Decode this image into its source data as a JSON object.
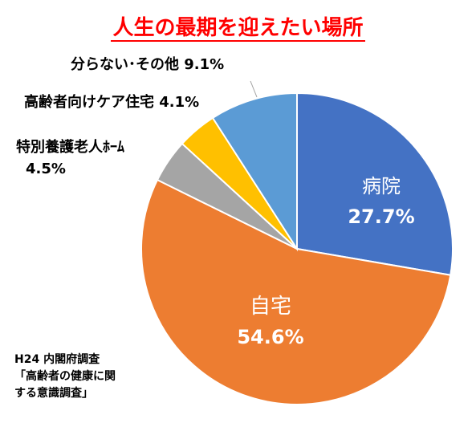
{
  "chart_data": {
    "type": "pie",
    "title": "人生の最期を迎えたい場所",
    "slices": [
      {
        "label": "病院",
        "value": 27.7,
        "value_text": "27.7%",
        "color": "#4472c4"
      },
      {
        "label": "自宅",
        "value": 54.6,
        "value_text": "54.6%",
        "color": "#ed7d31"
      },
      {
        "label": "特別養護老人ホーム",
        "value": 4.5,
        "value_text": "4.5%",
        "color": "#a5a5a5"
      },
      {
        "label": "高齢者向けケア住宅",
        "value": 4.1,
        "value_text": "4.1%",
        "color": "#ffc000"
      },
      {
        "label": "分らない・その他",
        "value": 9.1,
        "value_text": "9.1%",
        "color": "#5b9bd5"
      }
    ]
  },
  "labels": {
    "byoin_name": "病院",
    "byoin_value": "27.7%",
    "jitaku_name": "自宅",
    "jitaku_value": "54.6%",
    "tokuyo_name": "特別養護老人ﾎｰﾑ",
    "tokuyo_value": "4.5%",
    "koreisha": "高齢者向けケア住宅 4.1%",
    "wakaranai": "分らない･その他 9.1%"
  },
  "source": {
    "line1": "H24 内閣府調査",
    "line2": "「高齢者の健康に関",
    "line3": "する意識調査」"
  }
}
